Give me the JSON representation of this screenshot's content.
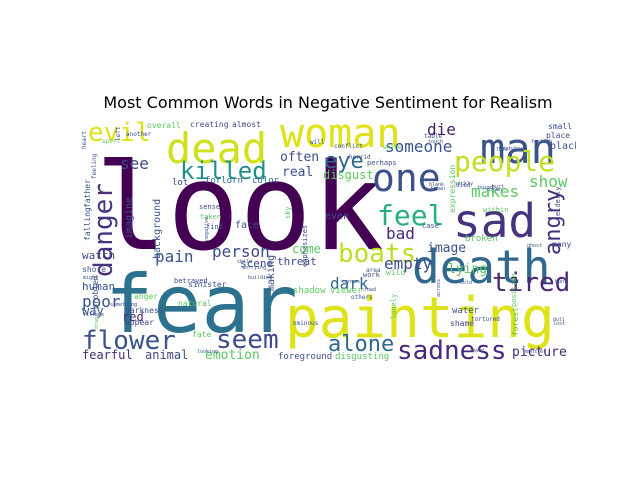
{
  "title": "Most Common Words in Negative Sentiment for Realism",
  "colors": {
    "background": "#ffffff",
    "palette": "viridis",
    "dark_purple": "#440154",
    "indigo": "#3b528b",
    "teal": "#21908d",
    "green": "#5dc863",
    "yellow": "#dde318"
  },
  "words": [
    {
      "text": "look",
      "color": "#440154"
    },
    {
      "text": "fear",
      "color": "#2c728e"
    },
    {
      "text": "painting",
      "color": "#dde318"
    },
    {
      "text": "man",
      "color": "#3b528b"
    },
    {
      "text": "woman",
      "color": "#dde318"
    },
    {
      "text": "dead",
      "color": "#d0e11c"
    },
    {
      "text": "death",
      "color": "#31688e"
    },
    {
      "text": "one",
      "color": "#3b528b"
    },
    {
      "text": "sad",
      "color": "#46327e"
    },
    {
      "text": "people",
      "color": "#c2df23"
    },
    {
      "text": "killed",
      "color": "#21908d"
    },
    {
      "text": "danger",
      "color": "#46327e"
    },
    {
      "text": "evil",
      "color": "#dde318"
    },
    {
      "text": "eye",
      "color": "#31688e"
    },
    {
      "text": "feel",
      "color": "#28ae80"
    },
    {
      "text": "boats",
      "color": "#bddf26"
    },
    {
      "text": "sadness",
      "color": "#482878"
    },
    {
      "text": "seem",
      "color": "#3e4989"
    },
    {
      "text": "alone",
      "color": "#31688e"
    },
    {
      "text": "flower",
      "color": "#3b528b"
    },
    {
      "text": "tired",
      "color": "#482878"
    },
    {
      "text": "angry",
      "color": "#472d7b"
    },
    {
      "text": "die",
      "color": "#481a6c"
    },
    {
      "text": "someone",
      "color": "#3b528b"
    },
    {
      "text": "show",
      "color": "#5dc863"
    },
    {
      "text": "makes",
      "color": "#5dc863"
    },
    {
      "text": "pain",
      "color": "#3b528b"
    },
    {
      "text": "person",
      "color": "#3e4989"
    },
    {
      "text": "see",
      "color": "#3e4989"
    },
    {
      "text": "often",
      "color": "#3b528b"
    },
    {
      "text": "real",
      "color": "#3b528b"
    },
    {
      "text": "empty",
      "color": "#3e4989"
    },
    {
      "text": "bad",
      "color": "#482878"
    },
    {
      "text": "dark",
      "color": "#31688e"
    },
    {
      "text": "image",
      "color": "#3b528b"
    },
    {
      "text": "lying",
      "color": "#5dc863"
    },
    {
      "text": "poor",
      "color": "#3b528b"
    },
    {
      "text": "emotion",
      "color": "#5dc863"
    },
    {
      "text": "animal",
      "color": "#3e4989"
    },
    {
      "text": "fearful",
      "color": "#482878"
    },
    {
      "text": "picture",
      "color": "#482878"
    },
    {
      "text": "come",
      "color": "#5dc863"
    },
    {
      "text": "scene",
      "color": "#3e4989"
    },
    {
      "text": "threat",
      "color": "#3e4989"
    },
    {
      "text": "watch",
      "color": "#3e4989"
    },
    {
      "text": "human",
      "color": "#3b528b"
    },
    {
      "text": "red",
      "color": "#482878"
    },
    {
      "text": "disgust",
      "color": "#5dc863"
    },
    {
      "text": "imagine",
      "color": "#3b528b"
    },
    {
      "text": "background",
      "color": "#3b528b"
    },
    {
      "text": "making",
      "color": "#3b528b"
    },
    {
      "text": "face",
      "color": "#3e4989"
    },
    {
      "text": "even",
      "color": "#3e4989"
    },
    {
      "text": "lot",
      "color": "#3e4989"
    },
    {
      "text": "forlorn",
      "color": "#31688e"
    },
    {
      "text": "color",
      "color": "#31688e"
    },
    {
      "text": "creating",
      "color": "#3b528b"
    },
    {
      "text": "overall",
      "color": "#5dc863"
    },
    {
      "text": "almost",
      "color": "#3e4989"
    },
    {
      "text": "foreground",
      "color": "#3b528b"
    },
    {
      "text": "disgusting",
      "color": "#5dc863"
    },
    {
      "text": "shadow",
      "color": "#5dc863"
    },
    {
      "text": "viewer",
      "color": "#5dc863"
    },
    {
      "text": "fate",
      "color": "#5dc863"
    },
    {
      "text": "sinister",
      "color": "#3b528b"
    },
    {
      "text": "anger",
      "color": "#5dc863"
    },
    {
      "text": "darkness",
      "color": "#3b528b"
    },
    {
      "text": "appear",
      "color": "#3e4989"
    },
    {
      "text": "natural",
      "color": "#5dc863"
    },
    {
      "text": "shore",
      "color": "#3b528b"
    },
    {
      "text": "way",
      "color": "#3b528b"
    },
    {
      "text": "water",
      "color": "#3b528b"
    },
    {
      "text": "shame",
      "color": "#3e4989"
    },
    {
      "text": "broken",
      "color": "#5dc863"
    },
    {
      "text": "many",
      "color": "#3e4989"
    },
    {
      "text": "elderly",
      "color": "#3e4989"
    },
    {
      "text": "black",
      "color": "#3b528b"
    },
    {
      "text": "expression",
      "color": "#5dc863"
    },
    {
      "text": "wild",
      "color": "#5dc863"
    },
    {
      "text": "lonely",
      "color": "#5dc863"
    },
    {
      "text": "forest",
      "color": "#5dc863"
    },
    {
      "text": "position",
      "color": "#5dc863"
    },
    {
      "text": "problem",
      "color": "#3b528b"
    },
    {
      "text": "falling",
      "color": "#3b528b"
    },
    {
      "text": "father",
      "color": "#3b528b"
    },
    {
      "text": "betrayed",
      "color": "#3e4989"
    },
    {
      "text": "sense",
      "color": "#3b528b"
    },
    {
      "text": "taken",
      "color": "#5dc863"
    },
    {
      "text": "find",
      "color": "#3b528b"
    },
    {
      "text": "emphasizes",
      "color": "#3b528b"
    },
    {
      "text": "work",
      "color": "#3b528b"
    },
    {
      "text": "perhaps",
      "color": "#3b528b"
    },
    {
      "text": "case",
      "color": "#3b528b"
    },
    {
      "text": "table",
      "color": "#3b528b"
    },
    {
      "text": "small",
      "color": "#3b528b"
    },
    {
      "text": "place",
      "color": "#3b528b"
    },
    {
      "text": "within",
      "color": "#5dc863"
    },
    {
      "text": "area",
      "color": "#3b528b"
    },
    {
      "text": "sky",
      "color": "#5dc863"
    },
    {
      "text": "left",
      "color": "#3b528b"
    },
    {
      "text": "another",
      "color": "#3b528b"
    },
    {
      "text": "heart",
      "color": "#3b528b"
    },
    {
      "text": "sport",
      "color": "#5dc863"
    },
    {
      "text": "feeling",
      "color": "#3b528b"
    },
    {
      "text": "conflict",
      "color": "#3b528b"
    },
    {
      "text": "horrid",
      "color": "#3b528b"
    },
    {
      "text": "ominous",
      "color": "#3b528b"
    },
    {
      "text": "tortured",
      "color": "#3b528b"
    },
    {
      "text": "white",
      "color": "#5dc863"
    },
    {
      "text": "child",
      "color": "#3b528b"
    },
    {
      "text": "negative",
      "color": "#3b528b"
    },
    {
      "text": "worrying",
      "color": "#3b528b"
    },
    {
      "text": "building",
      "color": "#3b528b"
    },
    {
      "text": "something",
      "color": "#3b528b"
    },
    {
      "text": "across",
      "color": "#3b528b"
    },
    {
      "text": "others",
      "color": "#3b528b"
    },
    {
      "text": "died",
      "color": "#3b528b"
    },
    {
      "text": "will",
      "color": "#3b528b"
    },
    {
      "text": "might",
      "color": "#3b528b"
    },
    {
      "text": "village",
      "color": "#3b528b"
    },
    {
      "text": "crowd",
      "color": "#3b528b"
    },
    {
      "text": "canvas",
      "color": "#3b528b"
    },
    {
      "text": "looking",
      "color": "#3b528b"
    },
    {
      "text": "drag",
      "color": "#5dc863"
    },
    {
      "text": "foolish",
      "color": "#3b528b"
    },
    {
      "text": "sickly",
      "color": "#3b528b"
    },
    {
      "text": "touch",
      "color": "#3b528b"
    },
    {
      "text": "blank",
      "color": "#3b528b"
    },
    {
      "text": "frown",
      "color": "#3b528b"
    },
    {
      "text": "drown",
      "color": "#3b528b"
    },
    {
      "text": "lost",
      "color": "#3b528b"
    },
    {
      "text": "life",
      "color": "#3b528b"
    },
    {
      "text": "foodsdown",
      "color": "#3b528b"
    },
    {
      "text": "cold",
      "color": "#3b528b"
    },
    {
      "text": "bored",
      "color": "#3b528b"
    },
    {
      "text": "hurt",
      "color": "#3b528b"
    },
    {
      "text": "dull",
      "color": "#3b528b"
    },
    {
      "text": "monster",
      "color": "#3b528b"
    },
    {
      "text": "bald",
      "color": "#3b528b"
    },
    {
      "text": "ghost",
      "color": "#3b528b"
    },
    {
      "text": "hunt",
      "color": "#3b528b"
    }
  ]
}
